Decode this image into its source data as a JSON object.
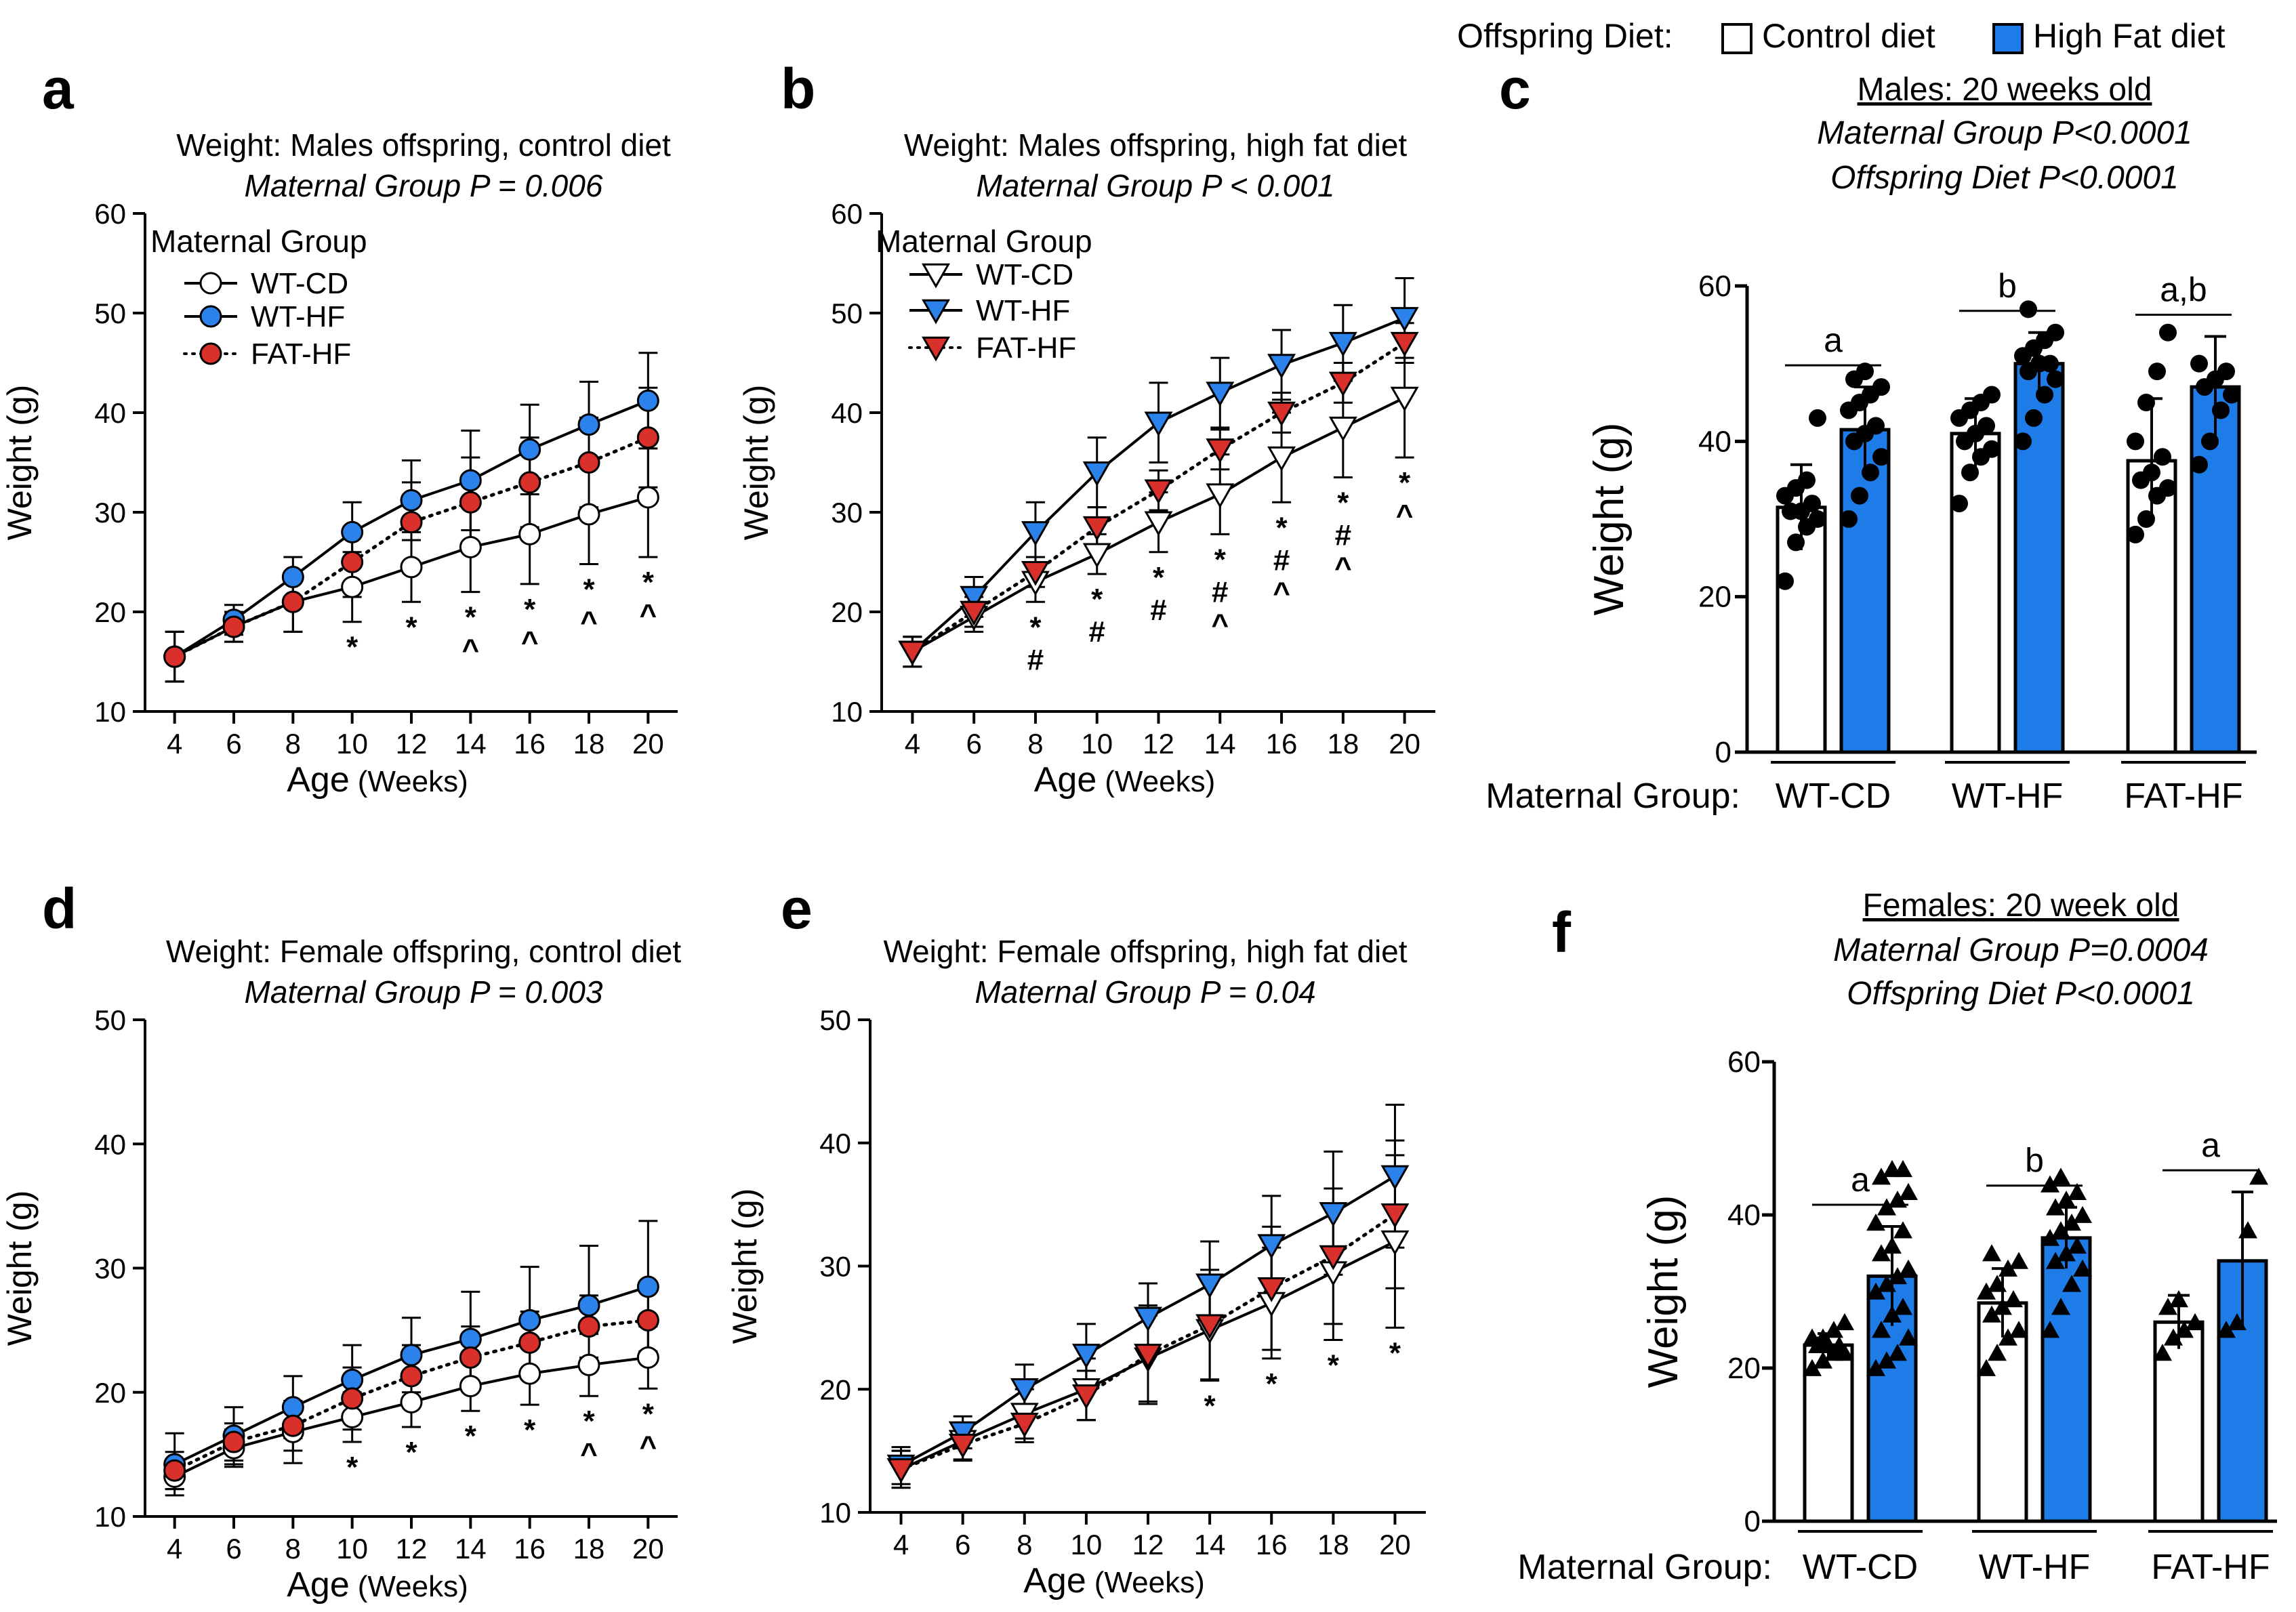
{
  "figure_legend": {
    "label": "Offspring Diet:",
    "control_label": "Control diet",
    "hf_label": "High Fat diet",
    "control_color": "#ffffff",
    "hf_color": "#1e7ce8"
  },
  "colors": {
    "wt_cd": "#ffffff",
    "wt_hf": "#2a82ea",
    "fat_hf": "#d9302c",
    "bar_hf": "#1e7ce8",
    "ink": "#000000"
  },
  "chart_data": [
    {
      "panel": "a",
      "type": "line",
      "title": "Weight: Males offspring, control diet",
      "subtitle": "Maternal Group P = 0.006",
      "xlabel": "Age",
      "xlabel_unit": "(Weeks)",
      "ylabel": "Weight (g)",
      "ylim": [
        10,
        60
      ],
      "yticks": [
        10,
        20,
        30,
        40,
        50,
        60
      ],
      "x": [
        4,
        6,
        8,
        10,
        12,
        14,
        16,
        18,
        20
      ],
      "marker": "circle",
      "legend_title": "Maternal Group",
      "legend_position": "top-left",
      "series": [
        {
          "name": "WT-CD",
          "style": "solid",
          "color": "#ffffff",
          "values": [
            15.5,
            18.5,
            21,
            22.5,
            24.5,
            26.5,
            27.8,
            29.8,
            31.5
          ],
          "err": [
            2.5,
            1.5,
            3,
            3.5,
            3.5,
            4.5,
            5,
            5,
            6
          ]
        },
        {
          "name": "WT-HF",
          "style": "solid",
          "color": "#2a82ea",
          "values": [
            15.5,
            19.2,
            23.5,
            28,
            31.2,
            33.2,
            36.3,
            38.8,
            41.2
          ],
          "err": [
            2.5,
            1.5,
            2,
            3,
            4,
            5,
            4.5,
            4.3,
            4.8
          ]
        },
        {
          "name": "FAT-HF",
          "style": "dotted",
          "color": "#d9302c",
          "values": [
            15.5,
            18.5,
            21,
            25,
            29,
            31,
            33,
            35,
            37.5
          ],
          "err": [
            2.5,
            1.5,
            3,
            3.5,
            4,
            4.5,
            4.5,
            4.5,
            5
          ]
        }
      ],
      "annotations": [
        {
          "x": 10,
          "text": [
            "*"
          ]
        },
        {
          "x": 12,
          "text": [
            "*"
          ]
        },
        {
          "x": 14,
          "text": [
            "*",
            "^"
          ]
        },
        {
          "x": 16,
          "text": [
            "*",
            "^"
          ]
        },
        {
          "x": 18,
          "text": [
            "*",
            "^"
          ]
        },
        {
          "x": 20,
          "text": [
            "*",
            "^"
          ]
        }
      ]
    },
    {
      "panel": "b",
      "type": "line",
      "title": "Weight: Males offspring, high fat diet",
      "subtitle": "Maternal Group P < 0.001",
      "xlabel": "Age",
      "xlabel_unit": "(Weeks)",
      "ylabel": "Weight (g)",
      "ylim": [
        10,
        60
      ],
      "yticks": [
        10,
        20,
        30,
        40,
        50,
        60
      ],
      "x": [
        4,
        6,
        8,
        10,
        12,
        14,
        16,
        18,
        20
      ],
      "marker": "triangle",
      "legend_title": "Maternal Group",
      "legend_position": "top-left",
      "series": [
        {
          "name": "WT-CD",
          "style": "solid",
          "color": "#ffffff",
          "values": [
            16,
            19.5,
            23,
            25.8,
            29,
            31.8,
            35.5,
            38.5,
            41.5
          ],
          "err": [
            1.5,
            1.5,
            2,
            2,
            3,
            4,
            4.5,
            5,
            6
          ]
        },
        {
          "name": "WT-HF",
          "style": "solid",
          "color": "#2a82ea",
          "values": [
            16,
            21.5,
            28,
            34,
            39,
            42,
            44.8,
            47,
            49.5
          ],
          "err": [
            1.5,
            2,
            3,
            3.5,
            4,
            3.5,
            3.5,
            3.8,
            4
          ]
        },
        {
          "name": "FAT-HF",
          "style": "dotted",
          "color": "#d9302c",
          "values": [
            16,
            20,
            24,
            28.5,
            32.2,
            36.3,
            40,
            43,
            47
          ],
          "err": [
            1.5,
            1.5,
            1.5,
            2,
            2,
            2,
            2,
            2,
            2
          ]
        }
      ],
      "annotations": [
        {
          "x": 8,
          "text": [
            "*",
            "#"
          ]
        },
        {
          "x": 10,
          "text": [
            "*",
            "#"
          ]
        },
        {
          "x": 12,
          "text": [
            "*",
            "#"
          ]
        },
        {
          "x": 14,
          "text": [
            "*",
            "#",
            "^"
          ]
        },
        {
          "x": 16,
          "text": [
            "*",
            "#",
            "^"
          ]
        },
        {
          "x": 18,
          "text": [
            "*",
            "#",
            "^"
          ]
        },
        {
          "x": 20,
          "text": [
            "*",
            "^"
          ]
        }
      ]
    },
    {
      "panel": "c",
      "type": "bar",
      "title": "Males: 20 weeks old",
      "subtitle_lines": [
        "Maternal Group P<0.0001",
        "Offspring Diet P<0.0001"
      ],
      "ylabel": "Weight (g)",
      "ylim": [
        0,
        60
      ],
      "yticks": [
        0,
        20,
        40,
        60
      ],
      "xlabel_prefix": "Maternal Group:",
      "marker": "circle",
      "groups": [
        {
          "name": "WT-CD",
          "letter": "a",
          "control": {
            "mean": 31.5,
            "sd": 5.5,
            "points": [
              22,
              27,
              29,
              30,
              31,
              31,
              32,
              33,
              34,
              35,
              43
            ]
          },
          "hf": {
            "mean": 41.5,
            "sd": 5.5,
            "points": [
              30,
              33,
              36,
              38,
              40,
              41,
              42,
              44,
              45,
              46,
              47,
              48,
              49
            ]
          }
        },
        {
          "name": "WT-HF",
          "letter": "b",
          "control": {
            "mean": 41,
            "sd": 4.5,
            "points": [
              32,
              36,
              38,
              39,
              40,
              41,
              42,
              43,
              44,
              45,
              46
            ]
          },
          "hf": {
            "mean": 50,
            "sd": 4,
            "points": [
              40,
              43,
              46,
              48,
              49,
              50,
              50,
              51,
              52,
              53,
              54,
              57
            ]
          }
        },
        {
          "name": "FAT-HF",
          "letter": "a,b",
          "control": {
            "mean": 37.5,
            "sd": 8,
            "points": [
              28,
              30,
              33,
              34,
              35,
              36,
              38,
              40,
              45,
              49,
              54
            ]
          },
          "hf": {
            "mean": 47,
            "sd": 6.5,
            "points": [
              37,
              40,
              44,
              46,
              47,
              48,
              49,
              50
            ]
          }
        }
      ]
    },
    {
      "panel": "d",
      "type": "line",
      "title": "Weight: Female offspring, control diet",
      "subtitle": "Maternal Group P = 0.003",
      "xlabel": "Age",
      "xlabel_unit": "(Weeks)",
      "ylabel": "Weight (g)",
      "ylim": [
        10,
        50
      ],
      "yticks": [
        10,
        20,
        30,
        40,
        50
      ],
      "x": [
        4,
        6,
        8,
        10,
        12,
        14,
        16,
        18,
        20
      ],
      "marker": "circle",
      "series": [
        {
          "name": "WT-CD",
          "style": "solid",
          "color": "#ffffff",
          "values": [
            13.2,
            15.5,
            16.8,
            18,
            19.2,
            20.5,
            21.5,
            22.2,
            22.8
          ],
          "err": [
            1,
            1.5,
            2.5,
            2,
            2,
            2,
            2.5,
            2.5,
            2.5
          ]
        },
        {
          "name": "WT-HF",
          "style": "solid",
          "color": "#2a82ea",
          "values": [
            14.2,
            16.5,
            18.8,
            21,
            23,
            24.3,
            25.8,
            27,
            28.5
          ],
          "err": [
            2.5,
            2.3,
            2.5,
            2.8,
            3,
            3.8,
            4.3,
            4.8,
            5.3
          ]
        },
        {
          "name": "FAT-HF",
          "style": "dotted",
          "color": "#d9302c",
          "values": [
            13.7,
            16,
            17.3,
            19.5,
            21.3,
            22.8,
            24,
            25.3,
            25.8
          ],
          "err": [
            1.5,
            1.5,
            2,
            2.5,
            2.5,
            2.5,
            2.5,
            2.5,
            2.5
          ]
        }
      ],
      "annotations": [
        {
          "x": 10,
          "text": [
            "*"
          ]
        },
        {
          "x": 12,
          "text": [
            "*"
          ]
        },
        {
          "x": 14,
          "text": [
            "*"
          ]
        },
        {
          "x": 16,
          "text": [
            "*"
          ]
        },
        {
          "x": 18,
          "text": [
            "*",
            "^"
          ]
        },
        {
          "x": 20,
          "text": [
            "*",
            "^"
          ]
        }
      ]
    },
    {
      "panel": "e",
      "type": "line",
      "title": "Weight: Female offspring, high fat diet",
      "subtitle": "Maternal Group P = 0.04",
      "xlabel": "Age",
      "xlabel_unit": "(Weeks)",
      "ylabel": "Weight (g)",
      "ylim": [
        10,
        50
      ],
      "yticks": [
        10,
        20,
        30,
        40,
        50
      ],
      "x": [
        4,
        6,
        8,
        10,
        12,
        14,
        16,
        18,
        20
      ],
      "marker": "triangle",
      "series": [
        {
          "name": "WT-CD",
          "style": "solid",
          "color": "#ffffff",
          "values": [
            13.5,
            15.8,
            18,
            20,
            22.5,
            24.8,
            27,
            29.5,
            32
          ],
          "err": [
            1.5,
            1.5,
            2,
            2.5,
            3.5,
            4,
            4.5,
            5.5,
            7
          ]
        },
        {
          "name": "WT-HF",
          "style": "solid",
          "color": "#2a82ea",
          "values": [
            13.8,
            16.5,
            20,
            22.8,
            25.8,
            28.5,
            31.7,
            34.3,
            37.3
          ],
          "err": [
            1.5,
            1.3,
            2,
            2.5,
            2.8,
            3.5,
            4,
            5,
            5.8
          ]
        },
        {
          "name": "FAT-HF",
          "style": "dotted",
          "color": "#d9302c",
          "values": [
            13.5,
            15.5,
            17.2,
            19.5,
            22.8,
            25.2,
            28.2,
            30.8,
            34.2
          ],
          "err": [
            1.5,
            1.3,
            1.5,
            2,
            4,
            4.5,
            5,
            5.5,
            6
          ]
        }
      ],
      "annotations": [
        {
          "x": 14,
          "text": [
            "*"
          ]
        },
        {
          "x": 16,
          "text": [
            "*"
          ]
        },
        {
          "x": 18,
          "text": [
            "*"
          ]
        },
        {
          "x": 20,
          "text": [
            "*"
          ]
        }
      ]
    },
    {
      "panel": "f",
      "type": "bar",
      "title": "Females: 20 week old",
      "subtitle_lines": [
        "Maternal Group P=0.0004",
        "Offspring Diet P<0.0001"
      ],
      "ylabel": "Weight (g)",
      "ylim": [
        0,
        60
      ],
      "yticks": [
        0,
        20,
        40,
        60
      ],
      "xlabel_prefix": "Maternal Group:",
      "marker": "triangle",
      "groups": [
        {
          "name": "WT-CD",
          "letter": "a",
          "control": {
            "mean": 23,
            "sd": 1.5,
            "points": [
              20,
              21,
              22,
              22,
              23,
              23,
              23,
              24,
              24,
              25,
              26
            ]
          },
          "hf": {
            "mean": 32,
            "sd": 6.5,
            "points": [
              20,
              21,
              22,
              24,
              25,
              27,
              28,
              30,
              31,
              32,
              33,
              35,
              36,
              38,
              39,
              41,
              42,
              43,
              45,
              46,
              46
            ]
          }
        },
        {
          "name": "WT-HF",
          "letter": "b",
          "control": {
            "mean": 28.5,
            "sd": 4.5,
            "points": [
              20,
              22,
              24,
              25,
              27,
              28,
              29,
              30,
              31,
              33,
              34,
              35
            ]
          },
          "hf": {
            "mean": 37,
            "sd": 4,
            "points": [
              25,
              28,
              31,
              33,
              34,
              35,
              36,
              37,
              38,
              39,
              40,
              41,
              42,
              43,
              44,
              45
            ]
          }
        },
        {
          "name": "FAT-HF",
          "letter": "a",
          "control": {
            "mean": 26,
            "sd": 3.5,
            "points": [
              22,
              24,
              25,
              26,
              28,
              29
            ]
          },
          "hf": {
            "mean": 34,
            "sd": 9,
            "points": [
              25,
              26,
              38,
              45
            ]
          }
        }
      ]
    }
  ]
}
